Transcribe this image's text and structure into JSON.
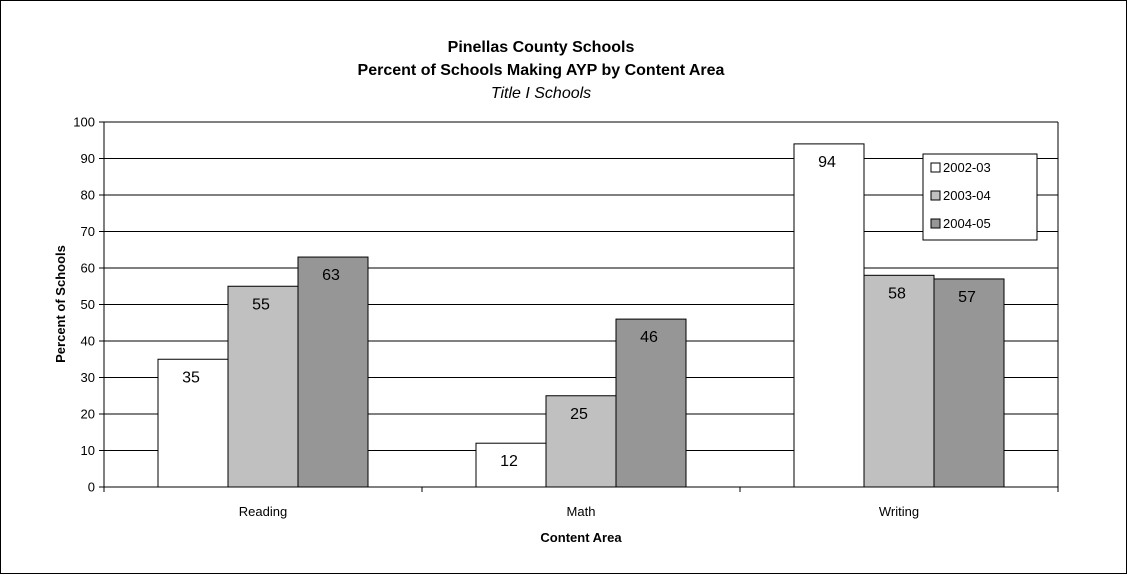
{
  "chart_data": {
    "type": "bar",
    "title": "Pinellas County Schools",
    "title_line2": "Percent of Schools Making AYP by Content Area",
    "subtitle": "Title I Schools",
    "xlabel": "Content Area",
    "ylabel": "Percent of Schools",
    "categories": [
      "Reading",
      "Math",
      "Writing"
    ],
    "ylim": [
      0,
      100
    ],
    "yticks": [
      0,
      10,
      20,
      30,
      40,
      50,
      60,
      70,
      80,
      90,
      100
    ],
    "grid": true,
    "legend_position": "top-right",
    "series": [
      {
        "name": "2002-03",
        "color": "#ffffff",
        "values": [
          35,
          12,
          94
        ]
      },
      {
        "name": "2003-04",
        "color": "#c0c0c0",
        "values": [
          55,
          25,
          58
        ]
      },
      {
        "name": "2004-05",
        "color": "#969696",
        "values": [
          63,
          46,
          57
        ]
      }
    ]
  }
}
